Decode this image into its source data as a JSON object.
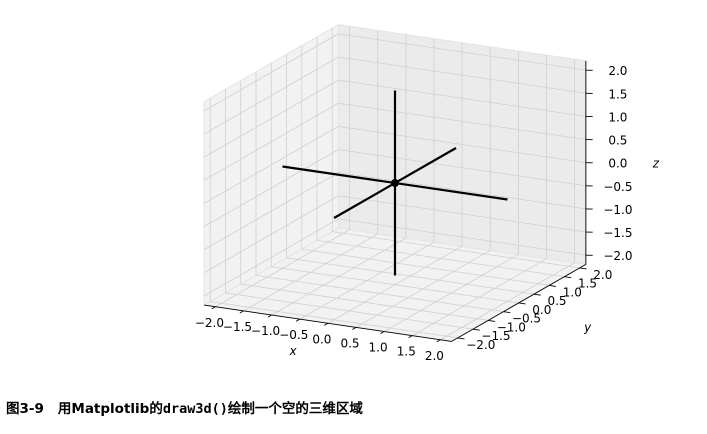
{
  "chart_data": {
    "type": "3d-line",
    "title": "",
    "xlabel": "x",
    "ylabel": "y",
    "zlabel": "z",
    "xlim": [
      -2.2,
      2.2
    ],
    "ylim": [
      -2.2,
      2.2
    ],
    "zlim": [
      -2.2,
      2.2
    ],
    "xticks": [
      "−2.0",
      "−1.5",
      "−1.0",
      "−0.5",
      "0.0",
      "0.5",
      "1.0",
      "1.5",
      "2.0"
    ],
    "yticks": [
      "−2.0",
      "−1.5",
      "−1.0",
      "−0.5",
      "0.0",
      "0.5",
      "1.0",
      "1.5",
      "2.0"
    ],
    "zticks": [
      "−2.0",
      "−1.5",
      "−1.0",
      "−0.5",
      "0.0",
      "0.5",
      "1.0",
      "1.5",
      "2.0"
    ],
    "grid": true,
    "line_color": "#000000",
    "series": [
      {
        "points": [
          [
            -2,
            0,
            0
          ],
          [
            2,
            0,
            0
          ]
        ]
      },
      {
        "points": [
          [
            0,
            -2,
            0
          ],
          [
            0,
            2,
            0
          ]
        ]
      },
      {
        "points": [
          [
            0,
            0,
            -2
          ],
          [
            0,
            0,
            2
          ]
        ]
      }
    ],
    "origin_marker": [
      0,
      0,
      0
    ]
  },
  "caption": {
    "number": "图3-9",
    "text_before": "用Matplotlib的",
    "code": "draw3d()",
    "text_after": "绘制一个空的三维区域"
  }
}
